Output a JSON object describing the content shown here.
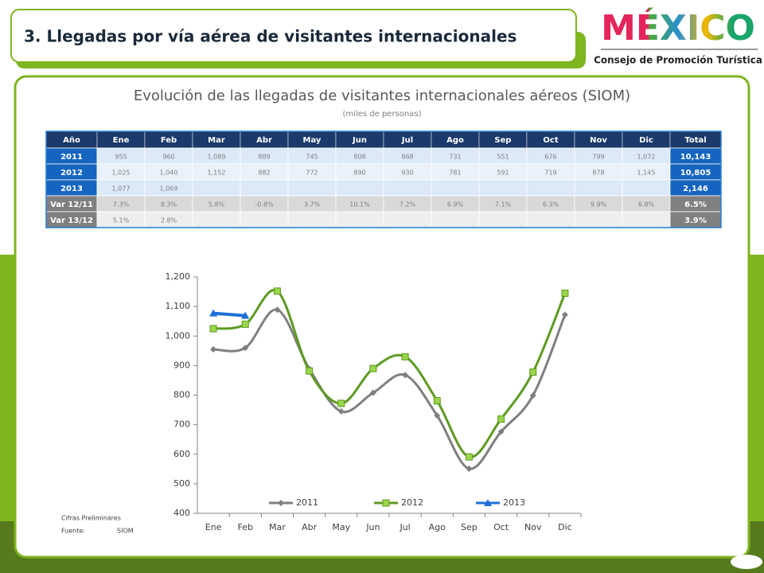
{
  "header": {
    "title": "3. Llegadas por vía aérea de visitantes internacionales",
    "logo": "MÉXICO",
    "logo_subtitle": "Consejo de Promoción Turística"
  },
  "chart_title": "Evolución de las llegadas de visitantes internacionales aéreos  (SIOM)",
  "chart_subtitle": "(miles de personas)",
  "table": {
    "header": [
      "Año",
      "Ene",
      "Feb",
      "Mar",
      "Abr",
      "May",
      "Jun",
      "Jul",
      "Ago",
      "Sep",
      "Oct",
      "Nov",
      "Dic",
      "Total"
    ],
    "rows": [
      [
        "2011",
        "955",
        "960",
        "1,089",
        "889",
        "745",
        "808",
        "868",
        "731",
        "551",
        "676",
        "799",
        "1,072",
        "10,143"
      ],
      [
        "2012",
        "1,025",
        "1,040",
        "1,152",
        "882",
        "772",
        "890",
        "930",
        "781",
        "591",
        "719",
        "878",
        "1,145",
        "10,805"
      ],
      [
        "2013",
        "1,077",
        "1,069",
        null,
        null,
        null,
        null,
        null,
        null,
        null,
        null,
        null,
        null,
        "2,146"
      ],
      [
        "Var 12/11",
        "7.3%",
        "8.3%",
        "5.8%",
        "-0.8%",
        "3.7%",
        "10.1%",
        "7.2%",
        "6.9%",
        "7.1%",
        "6.3%",
        "9.9%",
        "6.8%",
        "6.5%"
      ],
      [
        "Var 13/12",
        "5.1%",
        "2.8%",
        null,
        null,
        null,
        null,
        null,
        null,
        null,
        null,
        null,
        null,
        "3.9%"
      ]
    ]
  },
  "chart_data": {
    "type": "line",
    "categories": [
      "Ene",
      "Feb",
      "Mar",
      "Abr",
      "May",
      "Jun",
      "Jul",
      "Ago",
      "Sep",
      "Oct",
      "Nov",
      "Dic"
    ],
    "series": [
      {
        "name": "2011",
        "color": "#7f7f7f",
        "marker": "diamond",
        "values": [
          955,
          960,
          1089,
          889,
          745,
          808,
          868,
          731,
          551,
          676,
          799,
          1072
        ]
      },
      {
        "name": "2012",
        "color": "#5c9a22",
        "marker": "square",
        "values": [
          1025,
          1040,
          1152,
          882,
          772,
          890,
          930,
          781,
          591,
          719,
          878,
          1145
        ]
      },
      {
        "name": "2013",
        "color": "#1f6fd6",
        "marker": "triangle",
        "values": [
          1077,
          1069,
          null,
          null,
          null,
          null,
          null,
          null,
          null,
          null,
          null,
          null
        ]
      }
    ],
    "ylim": [
      400,
      1200
    ],
    "yticks": [
      400,
      500,
      600,
      700,
      800,
      900,
      {
        "value": 1000,
        "label": "1,000"
      },
      {
        "value": 1100,
        "label": "1,100"
      },
      {
        "value": 1200,
        "label": "1,200"
      }
    ],
    "grid": false,
    "legend": "bottom"
  },
  "notes": {
    "preliminary": "Cifras Preliminares",
    "source_label": "Fuente:",
    "source": "SIOM"
  }
}
